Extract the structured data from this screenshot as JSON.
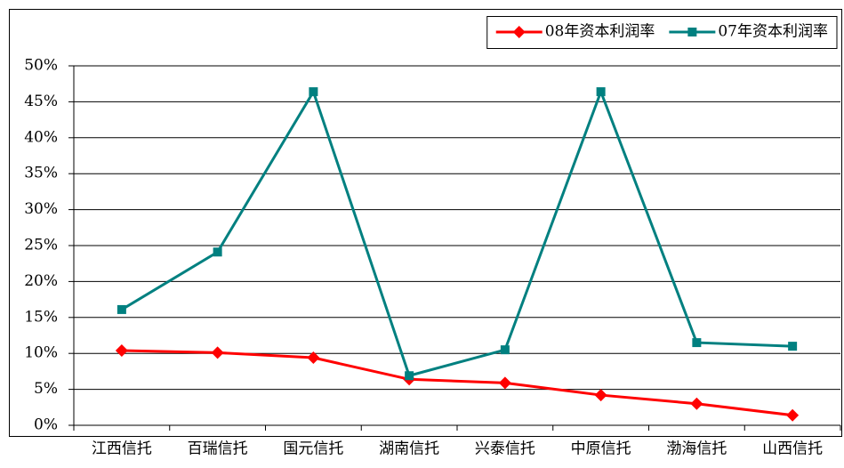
{
  "chart_data": {
    "type": "line",
    "categories": [
      "江西信托",
      "百瑞信托",
      "国元信托",
      "湖南信托",
      "兴泰信托",
      "中原信托",
      "渤海信托",
      "山西信托"
    ],
    "series": [
      {
        "name": "08年资本利润率",
        "color": "#ff0000",
        "marker": "diamond",
        "values": [
          10.4,
          10.1,
          9.4,
          6.4,
          5.9,
          4.2,
          3.0,
          1.4
        ]
      },
      {
        "name": "07年资本利润率",
        "color": "#008080",
        "marker": "square",
        "values": [
          16.1,
          24.1,
          46.4,
          6.9,
          10.5,
          46.4,
          11.5,
          11.0
        ]
      }
    ],
    "ylim": [
      0,
      50
    ],
    "yticks": [
      {
        "value": 0,
        "label": "0%"
      },
      {
        "value": 5,
        "label": "5%"
      },
      {
        "value": 10,
        "label": "10%"
      },
      {
        "value": 15,
        "label": "15%"
      },
      {
        "value": 20,
        "label": "20%"
      },
      {
        "value": 25,
        "label": "25%"
      },
      {
        "value": 30,
        "label": "30%"
      },
      {
        "value": 35,
        "label": "35%"
      },
      {
        "value": 40,
        "label": "40%"
      },
      {
        "value": 45,
        "label": "45%"
      },
      {
        "value": 50,
        "label": "50%"
      }
    ],
    "grid": true,
    "legend": "top-right"
  }
}
